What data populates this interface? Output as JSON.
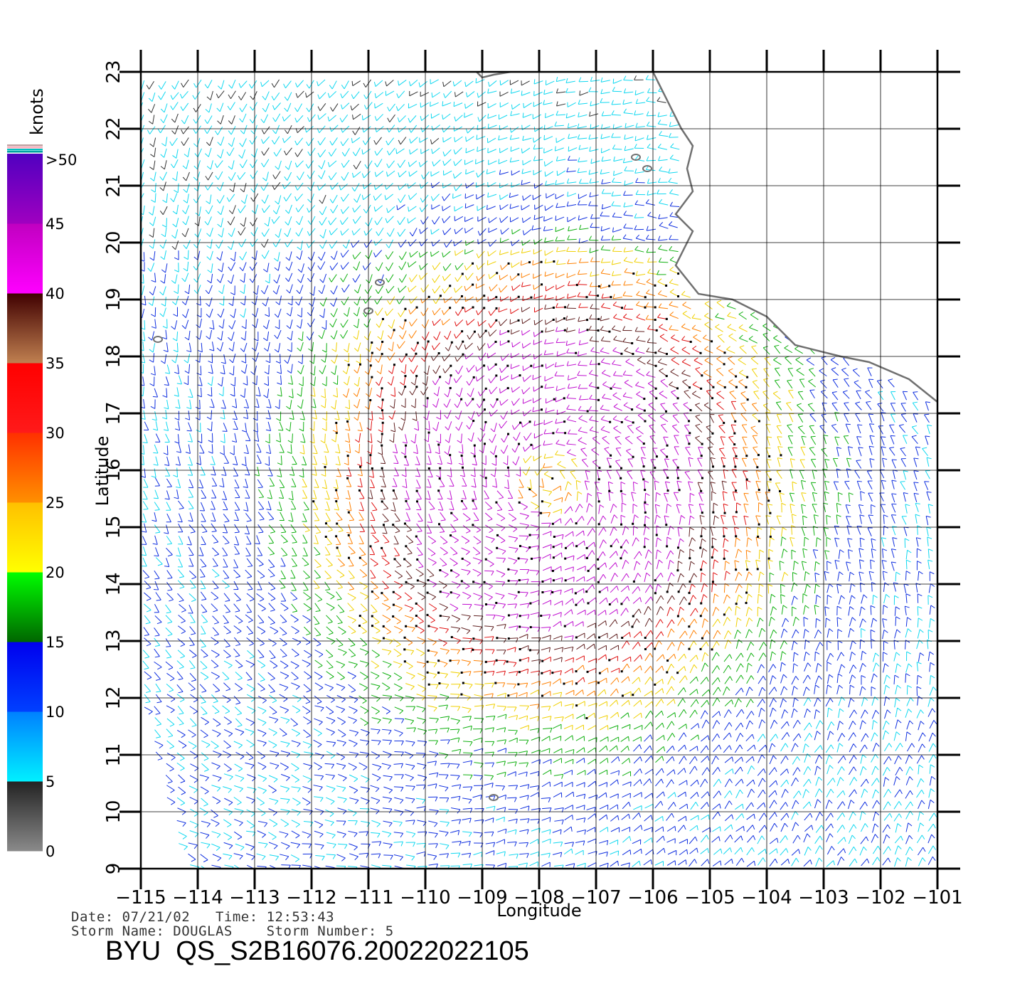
{
  "chart_data": {
    "type": "wind-barb-map",
    "xlabel": "Longitude",
    "ylabel": "Latitude",
    "xlim": [
      -115,
      -101
    ],
    "ylim": [
      9,
      23
    ],
    "x_ticks": [
      "−115",
      "−114",
      "−113",
      "−112",
      "−111",
      "−110",
      "−109",
      "−108",
      "−107",
      "−106",
      "−105",
      "−104",
      "−103",
      "−102",
      "−101"
    ],
    "y_ticks": [
      "9",
      "10",
      "11",
      "12",
      "13",
      "14",
      "15",
      "16",
      "17",
      "18",
      "19",
      "20",
      "21",
      "22",
      "23"
    ],
    "grid": true,
    "colorbar": {
      "title": "knots",
      "labels": [
        ">50",
        "45",
        "40",
        "35",
        "30",
        "25",
        "20",
        "15",
        "10",
        "5",
        "0"
      ],
      "bands": [
        {
          "min": 0,
          "max": 5,
          "colors": [
            "#8a8a8a",
            "#222222"
          ]
        },
        {
          "min": 5,
          "max": 10,
          "colors": [
            "#00f0ff",
            "#0080ff"
          ]
        },
        {
          "min": 10,
          "max": 15,
          "colors": [
            "#0040ff",
            "#0000ee"
          ]
        },
        {
          "min": 15,
          "max": 20,
          "colors": [
            "#006600",
            "#00ff00"
          ]
        },
        {
          "min": 20,
          "max": 25,
          "colors": [
            "#ffff00",
            "#ffc000"
          ]
        },
        {
          "min": 25,
          "max": 30,
          "colors": [
            "#ff9000",
            "#ff3000"
          ]
        },
        {
          "min": 30,
          "max": 35,
          "colors": [
            "#ff1a1a",
            "#ff0000"
          ]
        },
        {
          "min": 35,
          "max": 40,
          "colors": [
            "#c08050",
            "#400000"
          ]
        },
        {
          "min": 40,
          "max": 45,
          "colors": [
            "#ff00ff",
            "#c000c0"
          ]
        },
        {
          "min": 45,
          "max": 50,
          "colors": [
            "#a000c0",
            "#5000c0"
          ]
        }
      ]
    },
    "storm_center": {
      "lon": -107.8,
      "lat": 15.8
    },
    "coastline": [
      [
        -109.1,
        23.0
      ],
      [
        -109.0,
        22.9
      ],
      [
        -108.8,
        22.95
      ],
      [
        -108.5,
        23.0
      ],
      [
        -106.0,
        23.0
      ],
      [
        -105.8,
        22.6
      ],
      [
        -105.5,
        22.0
      ],
      [
        -105.3,
        21.7
      ],
      [
        -105.4,
        21.3
      ],
      [
        -105.3,
        20.9
      ],
      [
        -105.6,
        20.5
      ],
      [
        -105.3,
        20.2
      ],
      [
        -105.6,
        19.6
      ],
      [
        -105.2,
        19.1
      ],
      [
        -104.6,
        19.0
      ],
      [
        -104.0,
        18.7
      ],
      [
        -103.5,
        18.2
      ],
      [
        -102.7,
        18.0
      ],
      [
        -102.2,
        17.9
      ],
      [
        -101.5,
        17.6
      ],
      [
        -101.0,
        17.2
      ]
    ],
    "islands": [
      {
        "lon": -111.0,
        "lat": 18.8
      },
      {
        "lon": -110.8,
        "lat": 19.3
      },
      {
        "lon": -114.7,
        "lat": 18.3
      },
      {
        "lon": -106.3,
        "lat": 21.5
      },
      {
        "lon": -106.1,
        "lat": 21.3
      },
      {
        "lon": -108.8,
        "lat": 10.25
      }
    ]
  },
  "info": {
    "line1": "Date: 07/21/02   Time: 12:53:43",
    "line2": "Storm Name: DOUGLAS    Storm Number: 5"
  },
  "title": "BYU  QS_S2B16076.20022022105"
}
